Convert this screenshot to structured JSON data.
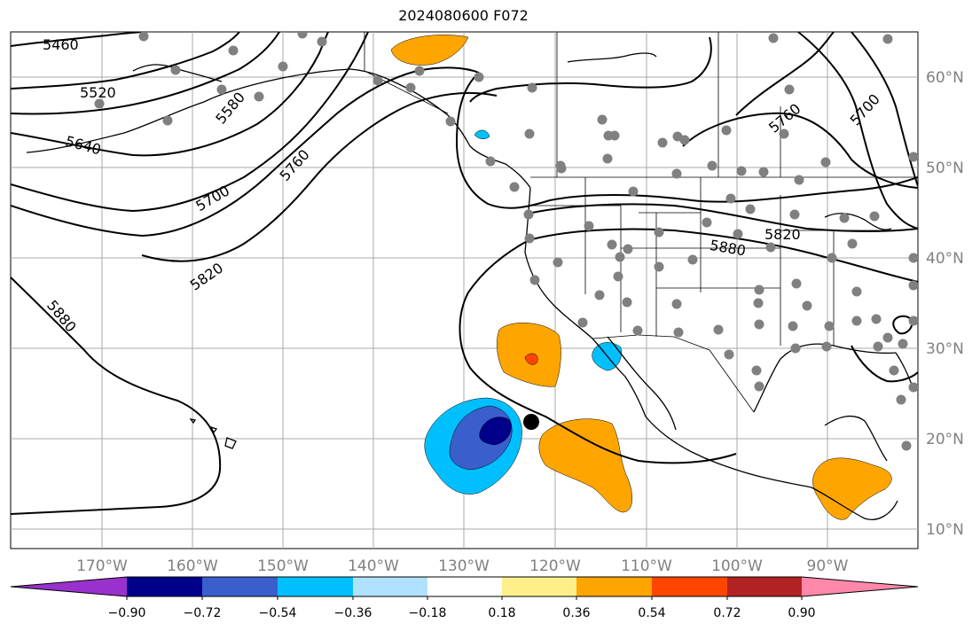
{
  "title": "2024080600 F072",
  "lon_labels": [
    "170°W",
    "160°W",
    "150°W",
    "140°W",
    "130°W",
    "120°W",
    "110°W",
    "100°W",
    "90°W"
  ],
  "lat_labels": [
    "60°N",
    "50°N",
    "40°N",
    "30°N",
    "20°N",
    "10°N"
  ],
  "contour_labels": [
    "5460",
    "5520",
    "5580",
    "5640",
    "5700",
    "5760",
    "5820",
    "5880",
    "5760",
    "5700",
    "5820",
    "5880"
  ],
  "colorbar": {
    "ticks": [
      "−0.90",
      "−0.72",
      "−0.54",
      "−0.36",
      "−0.18",
      "0.18",
      "0.36",
      "0.54",
      "0.72",
      "0.90"
    ],
    "colors": [
      "#9932cc",
      "#00008b",
      "#3a5fcd",
      "#00bfff",
      "#b0e2ff",
      "#ffffff",
      "#fff08a",
      "#ffa500",
      "#ff4500",
      "#b22222",
      "#ff88aa"
    ]
  },
  "colors": {
    "land": "#000000",
    "grid": "#a0a0a0",
    "station": "#808080"
  }
}
